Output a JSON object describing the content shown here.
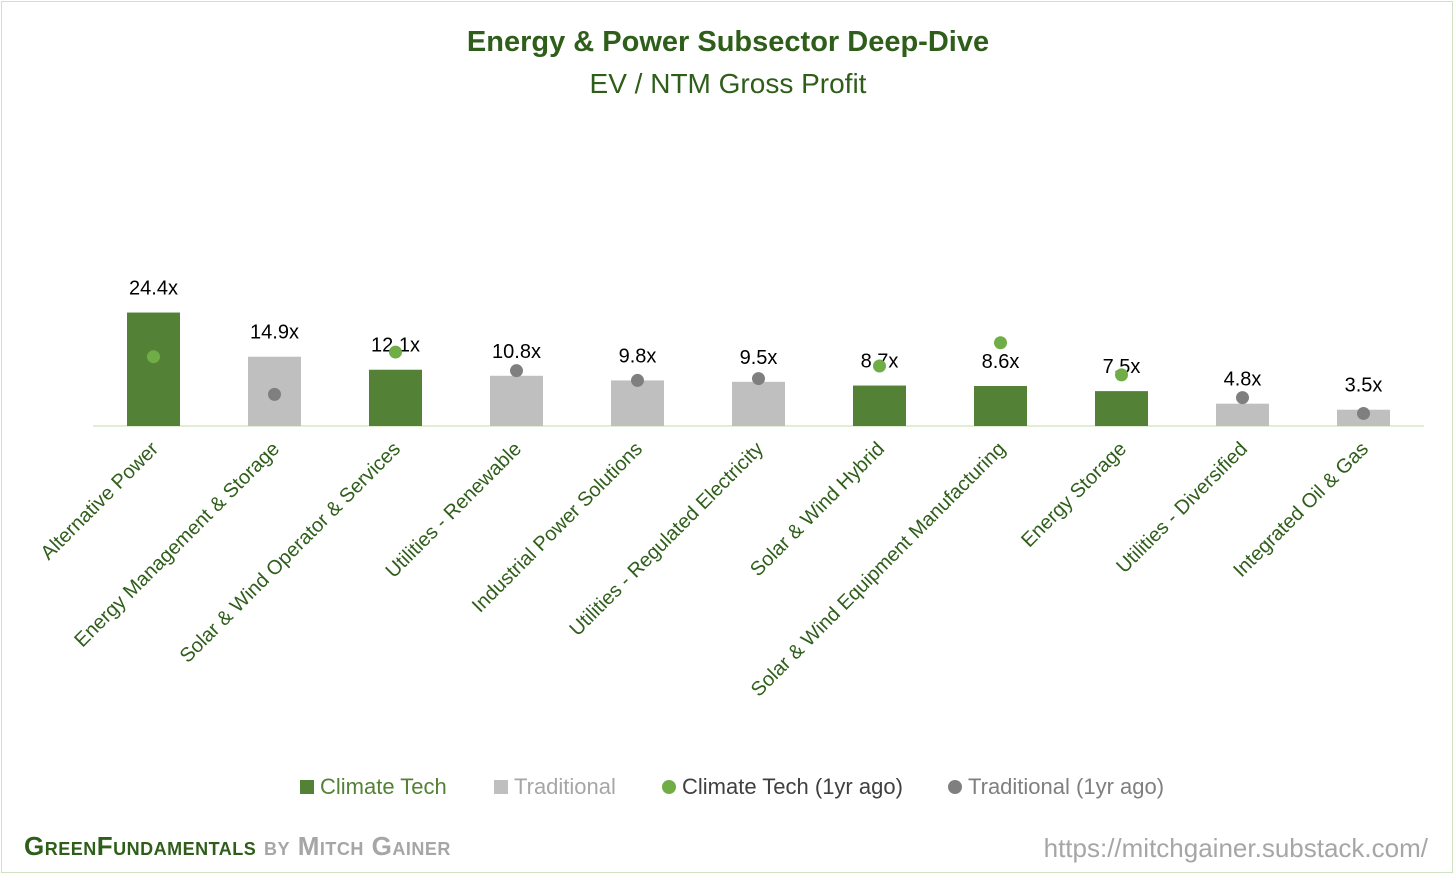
{
  "chart_data": {
    "type": "bar",
    "title": "Energy & Power Subsector Deep-Dive",
    "subtitle": "EV / NTM Gross Profit",
    "categories": [
      "Alternative Power",
      "Energy Management & Storage",
      "Solar & Wind Operator & Services",
      "Utilities - Renewable",
      "Industrial Power Solutions",
      "Utilities - Regulated Electricity",
      "Solar & Wind Hybrid",
      "Solar & Wind Equipment Manufacturing",
      "Energy Storage",
      "Utilities - Diversified",
      "Integrated Oil & Gas"
    ],
    "values": [
      24.4,
      14.9,
      12.1,
      10.8,
      9.8,
      9.5,
      8.7,
      8.6,
      7.5,
      4.8,
      3.5
    ],
    "value_labels": [
      "24.4x",
      "14.9x",
      "12.1x",
      "10.8x",
      "9.8x",
      "9.5x",
      "8.7x",
      "8.6x",
      "7.5x",
      "4.8x",
      "3.5x"
    ],
    "group": [
      "Climate Tech",
      "Traditional",
      "Climate Tech",
      "Traditional",
      "Traditional",
      "Traditional",
      "Climate Tech",
      "Climate Tech",
      "Climate Tech",
      "Traditional",
      "Traditional"
    ],
    "one_year_ago": [
      14.9,
      6.8,
      15.9,
      11.9,
      9.8,
      10.2,
      12.9,
      17.9,
      11.0,
      6.1,
      2.7
    ],
    "series": [
      {
        "name": "Climate Tech"
      },
      {
        "name": "Traditional"
      },
      {
        "name": "Climate Tech (1yr ago)"
      },
      {
        "name": "Traditional (1yr ago)"
      }
    ],
    "ylim": [
      0,
      30
    ],
    "grid": false,
    "legend_position": "bottom",
    "colors": {
      "Climate Tech": "#538135",
      "Traditional": "#bfbfbf",
      "Climate Tech (1yr ago)": "#70ad47",
      "Traditional (1yr ago)": "#7f7f7f"
    }
  },
  "footer": {
    "brand_green": "GreenFundamentals",
    "brand_by": "by",
    "brand_author": "Mitch Gainer",
    "url": "https://mitchgainer.substack.com/"
  }
}
